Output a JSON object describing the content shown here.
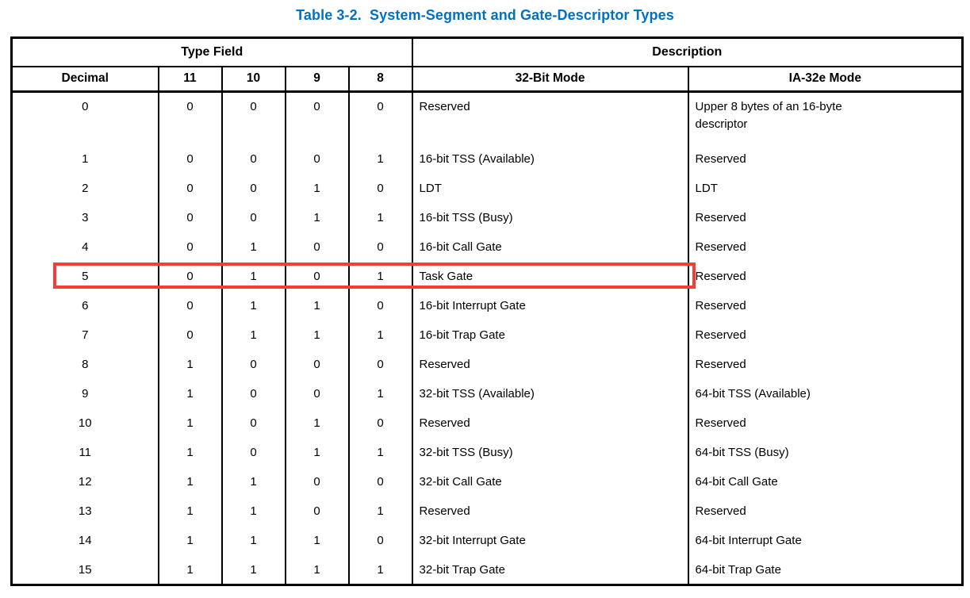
{
  "title": "Table 3-2.  System-Segment and Gate-Descriptor Types",
  "colors": {
    "title_blue": "#0071c5",
    "border": "#000000",
    "text": "#000000",
    "background": "#ffffff",
    "highlight_red": "#f23d38"
  },
  "table": {
    "group_headers": [
      {
        "label": "Type Field",
        "colspan": 5
      },
      {
        "label": "Description",
        "colspan": 2
      }
    ],
    "columns": [
      "Decimal",
      "11",
      "10",
      "9",
      "8",
      "32-Bit Mode",
      "IA-32e Mode"
    ],
    "rows": [
      [
        "0",
        "0",
        "0",
        "0",
        "0",
        "Reserved",
        "Upper 8 bytes of an 16-byte descriptor"
      ],
      [
        "1",
        "0",
        "0",
        "0",
        "1",
        "16-bit TSS (Available)",
        "Reserved"
      ],
      [
        "2",
        "0",
        "0",
        "1",
        "0",
        "LDT",
        "LDT"
      ],
      [
        "3",
        "0",
        "0",
        "1",
        "1",
        "16-bit TSS (Busy)",
        "Reserved"
      ],
      [
        "4",
        "0",
        "1",
        "0",
        "0",
        "16-bit Call Gate",
        "Reserved"
      ],
      [
        "5",
        "0",
        "1",
        "0",
        "1",
        "Task Gate",
        "Reserved"
      ],
      [
        "6",
        "0",
        "1",
        "1",
        "0",
        "16-bit Interrupt Gate",
        "Reserved"
      ],
      [
        "7",
        "0",
        "1",
        "1",
        "1",
        "16-bit Trap Gate",
        "Reserved"
      ],
      [
        "8",
        "1",
        "0",
        "0",
        "0",
        "Reserved",
        "Reserved"
      ],
      [
        "9",
        "1",
        "0",
        "0",
        "1",
        "32-bit TSS (Available)",
        "64-bit TSS (Available)"
      ],
      [
        "10",
        "1",
        "0",
        "1",
        "0",
        "Reserved",
        "Reserved"
      ],
      [
        "11",
        "1",
        "0",
        "1",
        "1",
        "32-bit TSS (Busy)",
        "64-bit TSS (Busy)"
      ],
      [
        "12",
        "1",
        "1",
        "0",
        "0",
        "32-bit Call Gate",
        "64-bit Call Gate"
      ],
      [
        "13",
        "1",
        "1",
        "0",
        "1",
        "Reserved",
        "Reserved"
      ],
      [
        "14",
        "1",
        "1",
        "1",
        "0",
        "32-bit Interrupt Gate",
        "64-bit Interrupt Gate"
      ],
      [
        "15",
        "1",
        "1",
        "1",
        "1",
        "32-bit Trap Gate",
        "64-bit Trap Gate"
      ]
    ]
  },
  "highlight": {
    "row_decimal": "5",
    "highlighted_text": "Task Gate",
    "color": "#f23d38"
  }
}
